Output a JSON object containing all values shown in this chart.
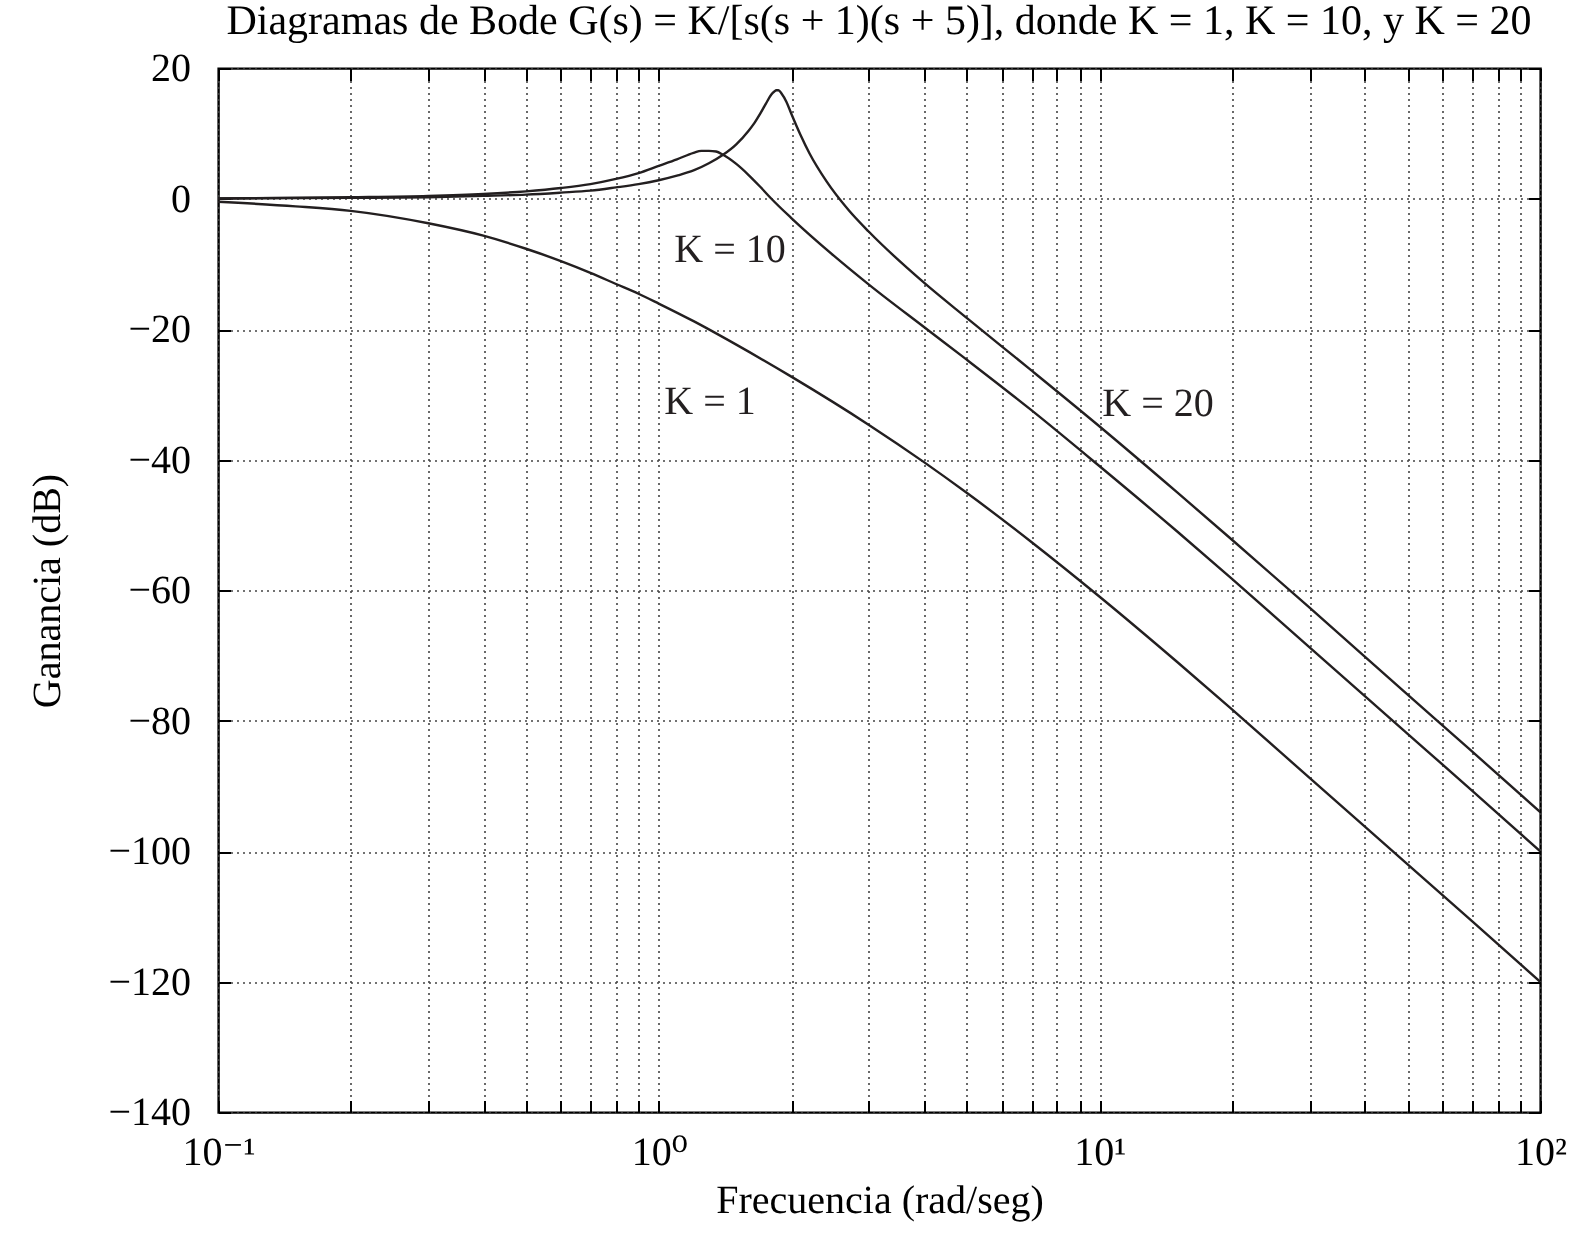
{
  "chart_data": {
    "type": "line",
    "title": "Diagramas de Bode G(s) = K/[s(s + 1)(s + 5)], donde K = 1, K = 10, y K = 20",
    "xlabel": "Frecuencia (rad/seg)",
    "ylabel": "Ganancia (dB)",
    "log": "x",
    "grid": true,
    "line_style": "solid",
    "xlim": [
      0.1,
      100
    ],
    "ylim": [
      -140,
      20
    ],
    "xticks": [
      {
        "value": 0.1,
        "label": "10⁻¹"
      },
      {
        "value": 0.2,
        "label": null
      },
      {
        "value": 0.3,
        "label": null
      },
      {
        "value": 0.4,
        "label": null
      },
      {
        "value": 0.5,
        "label": null
      },
      {
        "value": 0.6,
        "label": null
      },
      {
        "value": 0.7,
        "label": null
      },
      {
        "value": 0.8,
        "label": null
      },
      {
        "value": 0.9,
        "label": null
      },
      {
        "value": 1,
        "label": "10⁰"
      },
      {
        "value": 2,
        "label": null
      },
      {
        "value": 3,
        "label": null
      },
      {
        "value": 4,
        "label": null
      },
      {
        "value": 5,
        "label": null
      },
      {
        "value": 6,
        "label": null
      },
      {
        "value": 7,
        "label": null
      },
      {
        "value": 8,
        "label": null
      },
      {
        "value": 9,
        "label": null
      },
      {
        "value": 10,
        "label": "10¹"
      },
      {
        "value": 20,
        "label": null
      },
      {
        "value": 30,
        "label": null
      },
      {
        "value": 40,
        "label": null
      },
      {
        "value": 50,
        "label": null
      },
      {
        "value": 60,
        "label": null
      },
      {
        "value": 70,
        "label": null
      },
      {
        "value": 80,
        "label": null
      },
      {
        "value": 90,
        "label": null
      },
      {
        "value": 100,
        "label": "10²"
      }
    ],
    "yticks": [
      -140,
      -120,
      -100,
      -80,
      -60,
      -40,
      -20,
      0,
      20
    ],
    "series": [
      {
        "name": "K = 1",
        "color": "#231f20",
        "x": [
          0.1,
          0.15,
          0.2,
          0.3,
          0.4,
          0.5,
          0.6,
          0.7,
          0.8,
          0.9,
          1,
          1.2,
          1.5,
          2,
          3,
          4,
          5,
          7,
          10,
          15,
          20,
          30,
          50,
          70,
          100
        ],
        "values": [
          -0.5,
          -1.2,
          -1.9,
          -3.8,
          -5.7,
          -7.7,
          -9.6,
          -11.4,
          -13.1,
          -14.6,
          -16.1,
          -18.8,
          -22.4,
          -27.3,
          -34.7,
          -40.4,
          -45.1,
          -52.6,
          -61.0,
          -71.0,
          -78.3,
          -88.8,
          -102.0,
          -110.7,
          -120.0
        ]
      },
      {
        "name": "K = 10",
        "color": "#231f20",
        "x": [
          0.1,
          0.2,
          0.3,
          0.4,
          0.5,
          0.6,
          0.7,
          0.8,
          0.9,
          1,
          1.1,
          1.2,
          1.25,
          1.3,
          1.35,
          1.4,
          1.5,
          1.6,
          1.7,
          1.8,
          2,
          2.5,
          3,
          4,
          5,
          7,
          10,
          15,
          20,
          30,
          50,
          70,
          100
        ],
        "values": [
          0.0,
          0.2,
          0.4,
          0.7,
          1.1,
          1.6,
          2.2,
          3.0,
          3.9,
          5.0,
          6.0,
          7.0,
          7.3,
          7.3,
          7.2,
          6.7,
          5.3,
          3.6,
          1.8,
          0.0,
          -3.0,
          -8.8,
          -13.2,
          -19.7,
          -24.7,
          -32.4,
          -41.0,
          -51.0,
          -58.3,
          -68.8,
          -82.0,
          -90.7,
          -100.0
        ]
      },
      {
        "name": "K = 20",
        "color": "#231f20",
        "x": [
          0.1,
          0.2,
          0.3,
          0.4,
          0.5,
          0.6,
          0.7,
          0.8,
          0.9,
          1,
          1.1,
          1.2,
          1.3,
          1.4,
          1.5,
          1.6,
          1.65,
          1.7,
          1.75,
          1.8,
          1.83,
          1.85,
          1.87,
          1.9,
          1.95,
          2,
          2.1,
          2.2,
          2.4,
          2.7,
          3,
          4,
          5,
          7,
          10,
          15,
          20,
          30,
          50,
          70,
          100
        ],
        "values": [
          0.0,
          0.1,
          0.2,
          0.4,
          0.6,
          0.9,
          1.2,
          1.7,
          2.2,
          2.8,
          3.5,
          4.3,
          5.4,
          6.7,
          8.3,
          10.4,
          11.6,
          13.0,
          14.5,
          15.9,
          16.4,
          16.6,
          16.6,
          16.1,
          14.8,
          13.0,
          9.7,
          6.9,
          2.7,
          -1.8,
          -5.1,
          -12.9,
          -18.3,
          -26.3,
          -34.9,
          -45.0,
          -52.3,
          -62.7,
          -76.0,
          -84.7,
          -94.0
        ]
      }
    ]
  }
}
